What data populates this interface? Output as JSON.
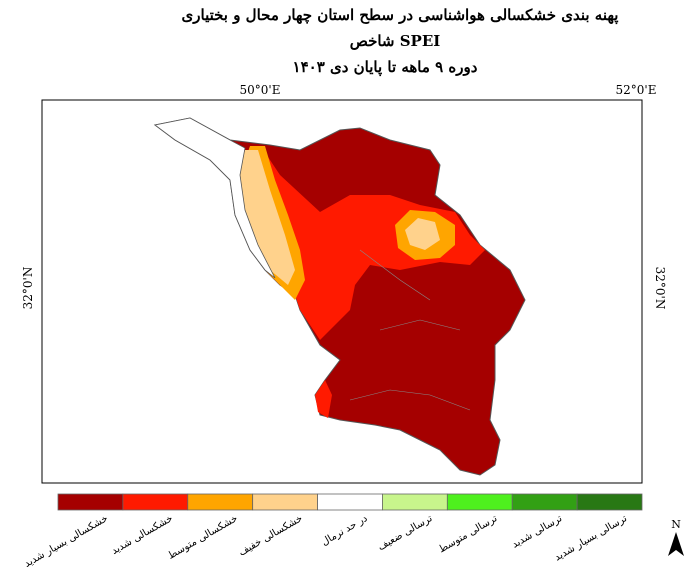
{
  "header": {
    "title_lines": [
      "پهنه بندی خشکسالی هواشناسی در سطح استان چهار محال و بختیاری",
      "شاخص SPEI",
      "دوره ۹ ماهه تا پایان دی ۱۴۰۳"
    ]
  },
  "map": {
    "top_labels": [
      "50°0'E",
      "52°0'E"
    ],
    "left_label": "32°0'N",
    "right_label": "32°0'N",
    "north": "N"
  },
  "legend": {
    "items": [
      {
        "label": "خشکسالی بسیار شدید",
        "color": "#a50000"
      },
      {
        "label": "خشکسالی شدید",
        "color": "#ff1a00"
      },
      {
        "label": "خشکسالی متوسط",
        "color": "#ffa500"
      },
      {
        "label": "خشکسالی خفیف",
        "color": "#ffd28c"
      },
      {
        "label": "در حد نرمال",
        "color": "#ffffff"
      },
      {
        "label": "ترسالی ضعیف",
        "color": "#c8f58c"
      },
      {
        "label": "ترسالی متوسط",
        "color": "#4ef01e"
      },
      {
        "label": "ترسالی شدید",
        "color": "#32a014"
      },
      {
        "label": "ترسالی بسیار شدید",
        "color": "#287814"
      }
    ]
  }
}
